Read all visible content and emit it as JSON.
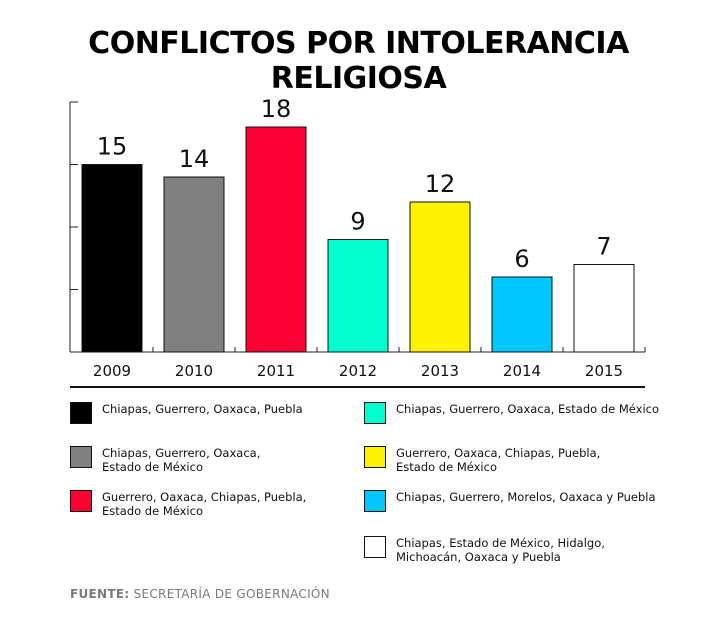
{
  "title": "CONFLICTOS POR INTOLERANCIA RELIGIOSA",
  "chart_data": {
    "type": "bar",
    "title": "CONFLICTOS POR INTOLERANCIA RELIGIOSA",
    "categories": [
      "2009",
      "2010",
      "2011",
      "2012",
      "2013",
      "2014",
      "2015"
    ],
    "values": [
      15,
      14,
      18,
      9,
      12,
      6,
      7
    ],
    "colors": [
      "#000000",
      "#808083",
      "#ff0033",
      "#00ffd0",
      "#fff200",
      "#00c8ff",
      "#ffffff"
    ],
    "ylim": [
      0,
      20
    ],
    "grid": false
  },
  "legend": [
    {
      "color": "#000000",
      "text": "Chiapas, Guerrero, Oaxaca, Puebla"
    },
    {
      "color": "#808083",
      "text": "Chiapas, Guerrero, Oaxaca,\nEstado de México"
    },
    {
      "color": "#ff0033",
      "text": "Guerrero, Oaxaca, Chiapas, Puebla,\nEstado de México"
    },
    {
      "color": "#00ffd0",
      "text": "Chiapas, Guerrero, Oaxaca, Estado de México"
    },
    {
      "color": "#fff200",
      "text": "Guerrero, Oaxaca, Chiapas, Puebla,\nEstado de México"
    },
    {
      "color": "#00c8ff",
      "text": "Chiapas, Guerrero, Morelos, Oaxaca y Puebla"
    },
    {
      "color": "#ffffff",
      "text": "Chiapas, Estado de México, Hidalgo,\nMichoacán, Oaxaca y Puebla"
    }
  ],
  "source": {
    "label": "FUENTE:",
    "text": " SECRETARÍA DE GOBERNACIÓN"
  }
}
